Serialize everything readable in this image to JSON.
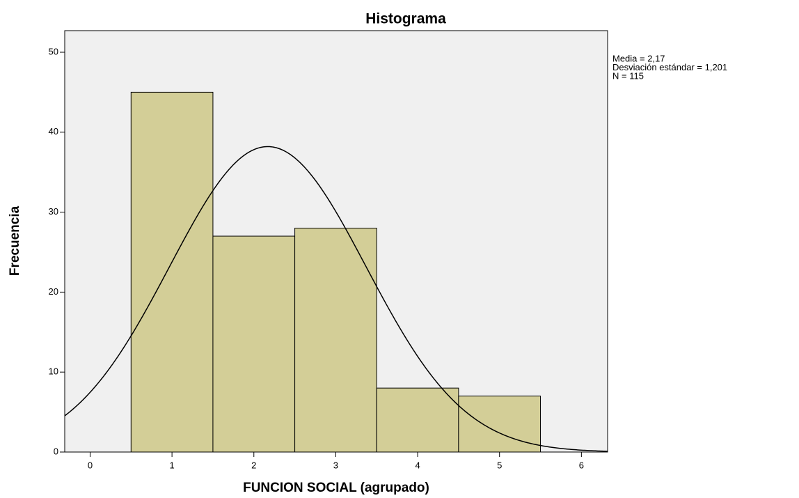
{
  "chart_data": {
    "type": "histogram",
    "title": "Histograma",
    "x_label": "FUNCION SOCIAL (agrupado)",
    "y_label": "Frecuencia",
    "bins": [
      0.5,
      1.5,
      2.5,
      3.5,
      4.5,
      5.5
    ],
    "values": [
      45,
      27,
      28,
      8,
      7
    ],
    "color": "#d3ce97",
    "xlim": [
      -0.31,
      6.32
    ],
    "xticks": [
      0,
      1,
      2,
      3,
      4,
      5,
      6
    ],
    "ylim": [
      0,
      52.7
    ],
    "yticks": [
      0,
      10,
      20,
      30,
      40,
      50
    ],
    "normal_curve": {
      "mean": 2.17,
      "sd": 1.201,
      "n": 115
    },
    "annotations": [
      "Media = 2,17",
      "Desviación estándar = 1,201",
      "N = 115"
    ]
  }
}
